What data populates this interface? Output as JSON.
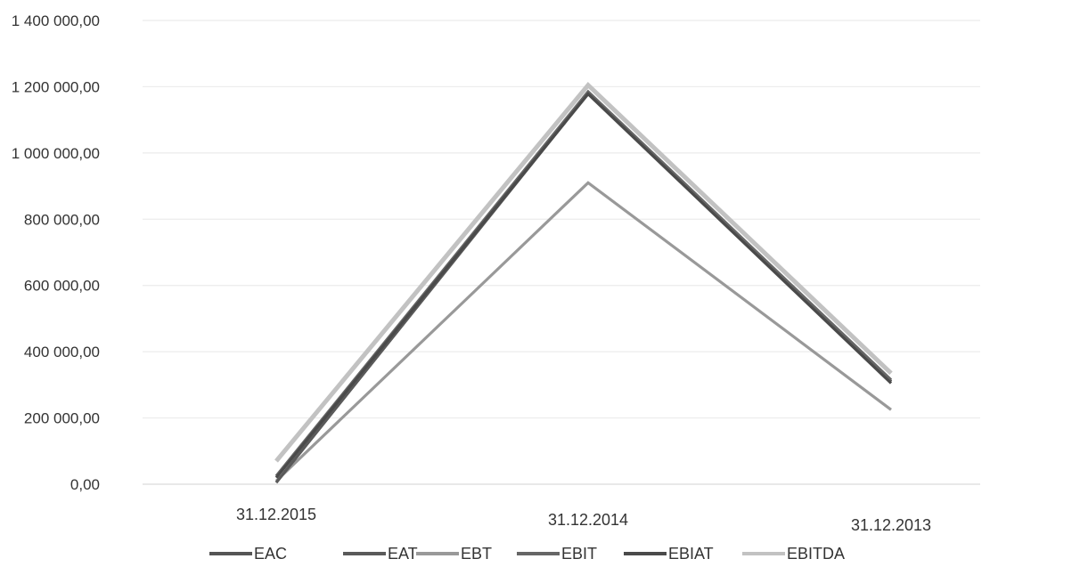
{
  "chart_data": {
    "type": "line",
    "title": "",
    "xlabel": "",
    "ylabel": "",
    "categories": [
      "31.12.2015",
      "31.12.2014",
      "31.12.2013"
    ],
    "ylim": [
      0,
      1400000
    ],
    "yticks": [
      "0,00",
      "200 000,00",
      "400 000,00",
      "600 000,00",
      "800 000,00",
      "1 000 000,00",
      "1 200 000,00",
      "1 400 000,00"
    ],
    "grid": true,
    "legend_position": "bottom",
    "series": [
      {
        "name": "EAC",
        "values": [
          5000,
          1180000,
          310000
        ],
        "color": "#555555"
      },
      {
        "name": "EAT",
        "values": [
          5000,
          1180000,
          310000
        ],
        "color": "#5a5a5a"
      },
      {
        "name": "EBT",
        "values": [
          10000,
          910000,
          225000
        ],
        "color": "#999999"
      },
      {
        "name": "EBIT",
        "values": [
          25000,
          1185000,
          315000
        ],
        "color": "#666666"
      },
      {
        "name": "EBIAT",
        "values": [
          20000,
          1178000,
          305000
        ],
        "color": "#4a4a4a"
      },
      {
        "name": "EBITDA",
        "values": [
          70000,
          1205000,
          335000
        ],
        "color": "#c2c2c2"
      }
    ]
  }
}
